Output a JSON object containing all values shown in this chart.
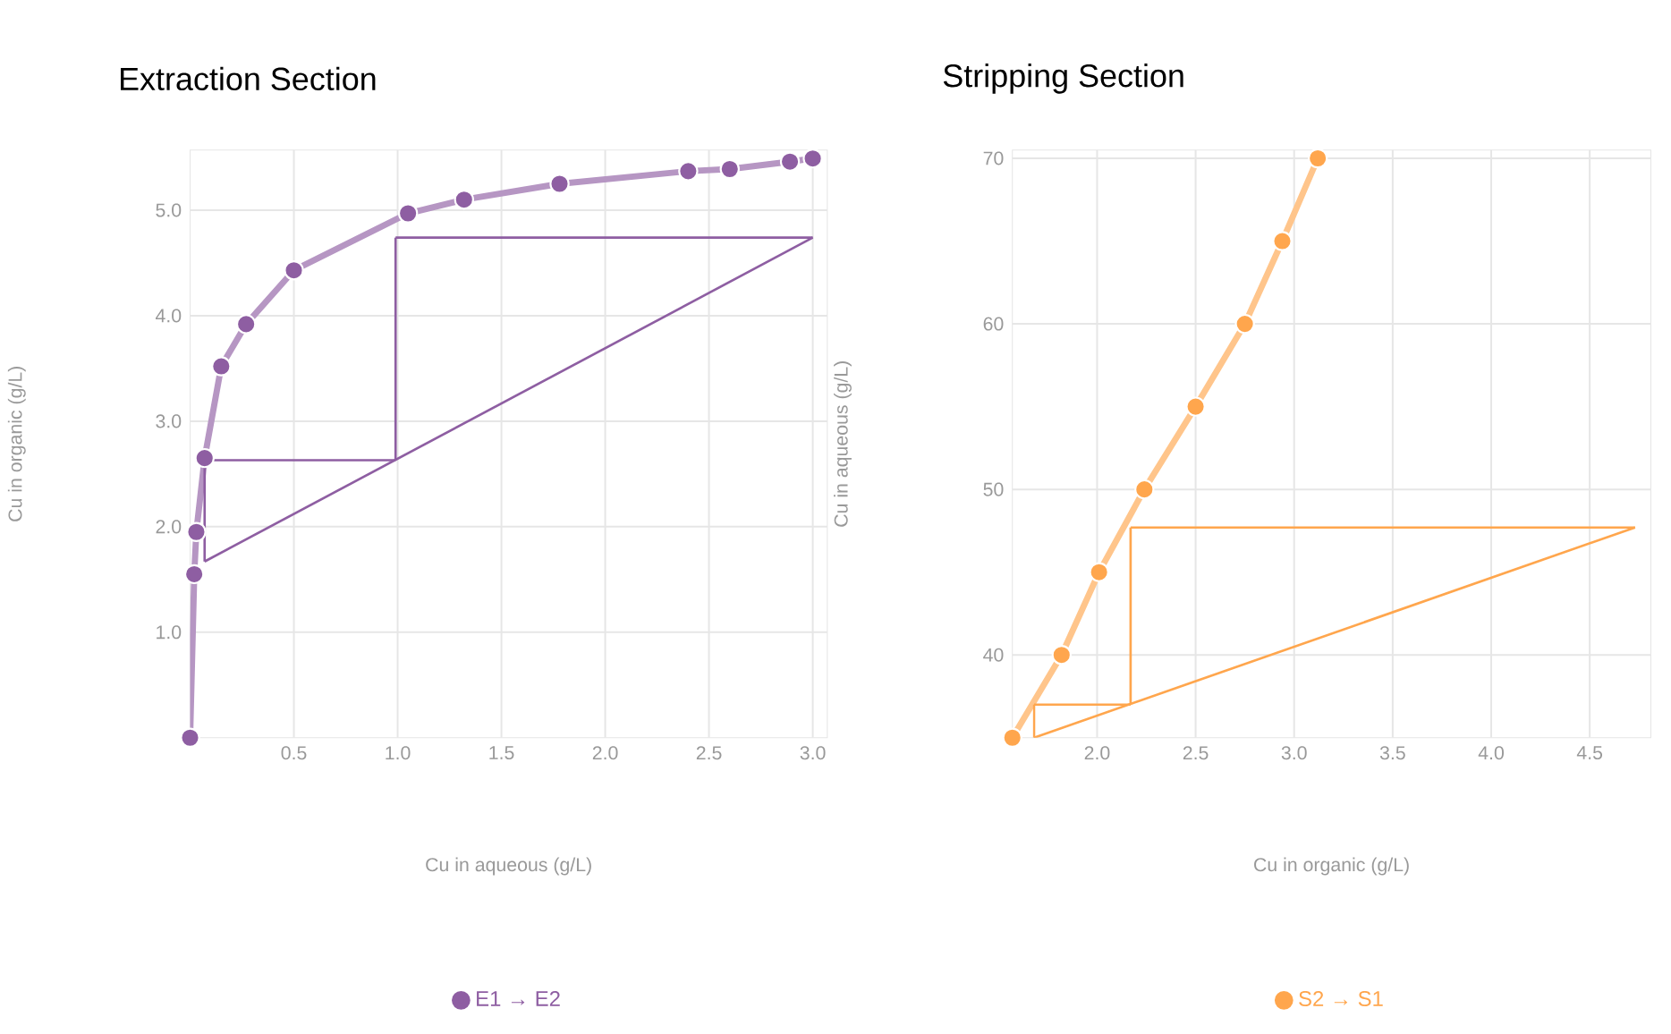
{
  "chart_data": [
    {
      "type": "line",
      "title": "Extraction Section",
      "xlabel": "Cu in aqueous (g/L)",
      "ylabel": "Cu in organic (g/L)",
      "xlim": [
        0,
        3.07
      ],
      "ylim": [
        0,
        5.57
      ],
      "xticks": [
        {
          "value": 0.5,
          "label": "0.5"
        },
        {
          "value": 1,
          "label": "1.0"
        },
        {
          "value": 1.5,
          "label": "1.5"
        },
        {
          "value": 2,
          "label": "2.0"
        },
        {
          "value": 2.5,
          "label": "2.5"
        },
        {
          "value": 3,
          "label": "3.0"
        }
      ],
      "yticks": [
        {
          "value": 1,
          "label": "1.0"
        },
        {
          "value": 2,
          "label": "2.0"
        },
        {
          "value": 3,
          "label": "3.0"
        },
        {
          "value": 4,
          "label": "4.0"
        },
        {
          "value": 5,
          "label": "5.0"
        }
      ],
      "grid": true,
      "legend": "bottom",
      "marker": "circle",
      "series": [
        {
          "name": "E1 → E2",
          "color": "#8e5ea2",
          "x": [
            0.0,
            0.02,
            0.03,
            0.07,
            0.15,
            0.27,
            0.5,
            1.05,
            1.32,
            1.78,
            2.4,
            2.6,
            2.89,
            3.0
          ],
          "values": [
            0.0,
            1.55,
            1.95,
            2.65,
            3.52,
            3.92,
            4.43,
            4.97,
            5.1,
            5.25,
            5.37,
            5.39,
            5.46,
            5.49
          ]
        },
        {
          "color": "#8e5ea2",
          "marker": "none",
          "x": [
            0.07,
            3.0
          ],
          "values": [
            1.67,
            4.74
          ]
        },
        {
          "color": "#8e5ea2",
          "marker": "none",
          "x": [
            0.99,
            3.0
          ],
          "values": [
            4.74,
            4.74
          ]
        },
        {
          "color": "#8e5ea2",
          "marker": "none",
          "x": [
            0.99,
            0.99
          ],
          "values": [
            2.63,
            4.74
          ]
        },
        {
          "color": "#8e5ea2",
          "marker": "none",
          "x": [
            0.07,
            0.99
          ],
          "values": [
            2.63,
            2.63
          ]
        },
        {
          "color": "#8e5ea2",
          "marker": "none",
          "x": [
            0.07,
            0.07
          ],
          "values": [
            1.67,
            2.63
          ]
        }
      ]
    },
    {
      "type": "line",
      "title": "Stripping Section",
      "xlabel": "Cu in organic (g/L)",
      "ylabel": "Cu in aqueous (g/L)",
      "xlim": [
        1.57,
        4.81
      ],
      "ylim": [
        35,
        70.5
      ],
      "xticks": [
        {
          "value": 2,
          "label": "2.0"
        },
        {
          "value": 2.5,
          "label": "2.5"
        },
        {
          "value": 3,
          "label": "3.0"
        },
        {
          "value": 3.5,
          "label": "3.5"
        },
        {
          "value": 4,
          "label": "4.0"
        },
        {
          "value": 4.5,
          "label": "4.5"
        }
      ],
      "yticks": [
        40,
        50,
        60,
        70
      ],
      "grid": true,
      "legend": "bottom",
      "marker": "circle",
      "series": [
        {
          "name": "S2 → S1",
          "color": "#ffa64d",
          "x": [
            1.57,
            1.82,
            2.01,
            2.24,
            2.5,
            2.75,
            2.94,
            3.12
          ],
          "values": [
            35,
            40,
            45,
            50,
            55,
            60,
            65,
            70
          ]
        },
        {
          "color": "#ffa64d",
          "marker": "none",
          "x": [
            1.68,
            4.73
          ],
          "values": [
            35,
            47.7
          ]
        },
        {
          "color": "#ffa64d",
          "marker": "none",
          "x": [
            2.17,
            4.73
          ],
          "values": [
            47.7,
            47.7
          ]
        },
        {
          "color": "#ffa64d",
          "marker": "none",
          "x": [
            2.17,
            2.17
          ],
          "values": [
            37,
            47.7
          ]
        },
        {
          "color": "#ffa64d",
          "marker": "none",
          "x": [
            1.68,
            2.17
          ],
          "values": [
            37,
            37
          ]
        },
        {
          "color": "#ffa64d",
          "marker": "none",
          "x": [
            1.68,
            1.68
          ],
          "values": [
            35,
            37
          ]
        }
      ]
    }
  ]
}
